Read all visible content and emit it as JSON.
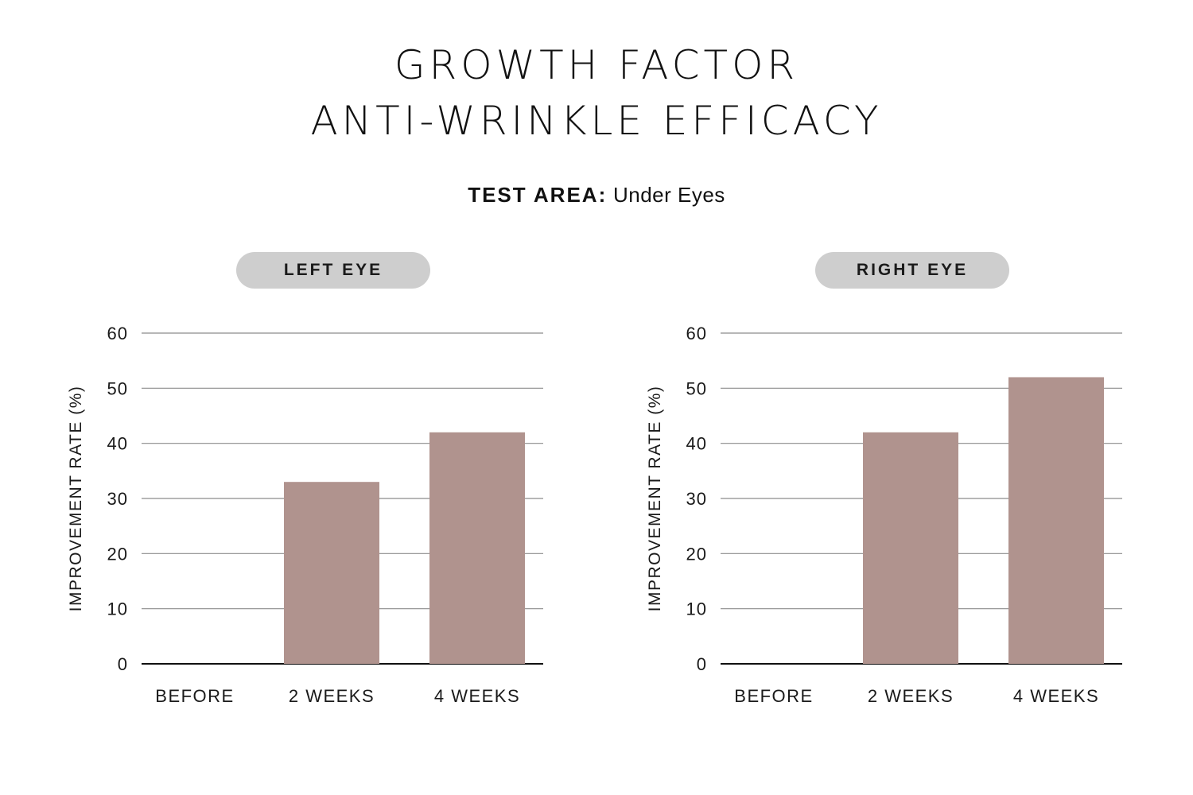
{
  "header": {
    "title_line1": "GROWTH FACTOR",
    "title_line2": "ANTI-WRINKLE EFFICACY",
    "test_area_label": "TEST AREA:",
    "test_area_value": "Under Eyes"
  },
  "colors": {
    "bar": "#b0938e",
    "grid": "#8c8c8c",
    "pill_bg": "#cecece",
    "text": "#1a1a1a"
  },
  "chart_data": [
    {
      "type": "bar",
      "title": "LEFT EYE",
      "ylabel": "IMPROVEMENT RATE (%)",
      "xlabel": "",
      "categories": [
        "BEFORE",
        "2 WEEKS",
        "4 WEEKS"
      ],
      "values": [
        0,
        33,
        42
      ],
      "ylim": [
        0,
        60
      ],
      "yticks": [
        0,
        10,
        20,
        30,
        40,
        50,
        60
      ],
      "grid": true
    },
    {
      "type": "bar",
      "title": "RIGHT EYE",
      "ylabel": "IMPROVEMENT RATE (%)",
      "xlabel": "",
      "categories": [
        "BEFORE",
        "2 WEEKS",
        "4 WEEKS"
      ],
      "values": [
        0,
        42,
        52
      ],
      "ylim": [
        0,
        60
      ],
      "yticks": [
        0,
        10,
        20,
        30,
        40,
        50,
        60
      ],
      "grid": true
    }
  ]
}
